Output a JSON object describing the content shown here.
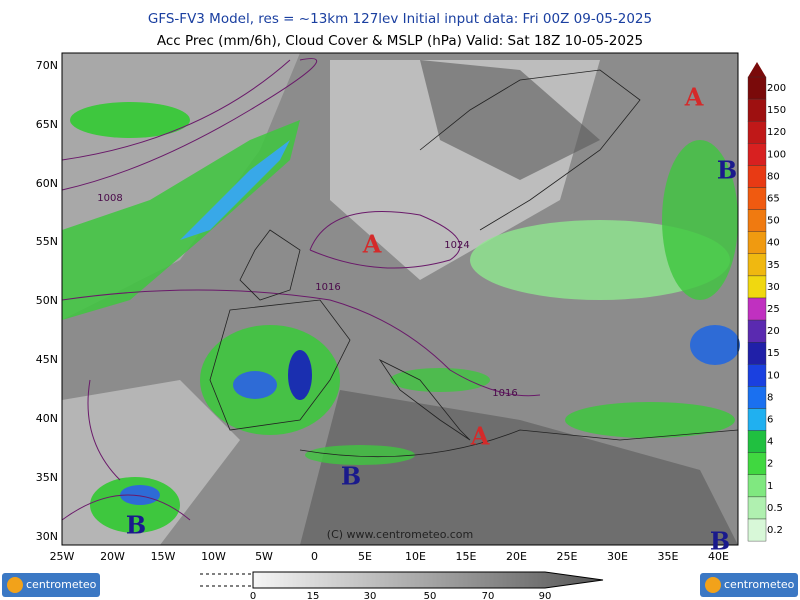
{
  "header": {
    "line1": "GFS-FV3 Model, res = ~13km 127lev    Initial input data: Fri 00Z 09-05-2025",
    "line2": "Acc Prec (mm/6h), Cloud Cover & MSLP (hPa)  Valid: Sat 18Z 10-05-2025"
  },
  "map": {
    "lat_labels": [
      "70N",
      "65N",
      "60N",
      "55N",
      "50N",
      "45N",
      "40N",
      "35N",
      "30N"
    ],
    "lon_labels": [
      "25W",
      "20W",
      "15W",
      "10W",
      "5W",
      "0",
      "5E",
      "10E",
      "15E",
      "20E",
      "25E",
      "30E",
      "35E",
      "40E"
    ],
    "isobar_labels": [
      "1008",
      "1016",
      "1024",
      "1016"
    ],
    "pressure_centers": [
      "A",
      "A",
      "A",
      "B",
      "B",
      "B",
      "B"
    ],
    "copyright": "(C) www.centrometeo.com"
  },
  "precip_legend": {
    "labels": [
      "200",
      "150",
      "120",
      "100",
      "80",
      "65",
      "50",
      "40",
      "35",
      "30",
      "25",
      "20",
      "15",
      "10",
      "8",
      "6",
      "4",
      "2",
      "1",
      "0.5",
      "0.2"
    ]
  },
  "cloud_legend": {
    "labels": [
      "0",
      "15",
      "30",
      "50",
      "70",
      "90"
    ]
  },
  "logos": [
    "centrometeo",
    "centrometeo"
  ]
}
